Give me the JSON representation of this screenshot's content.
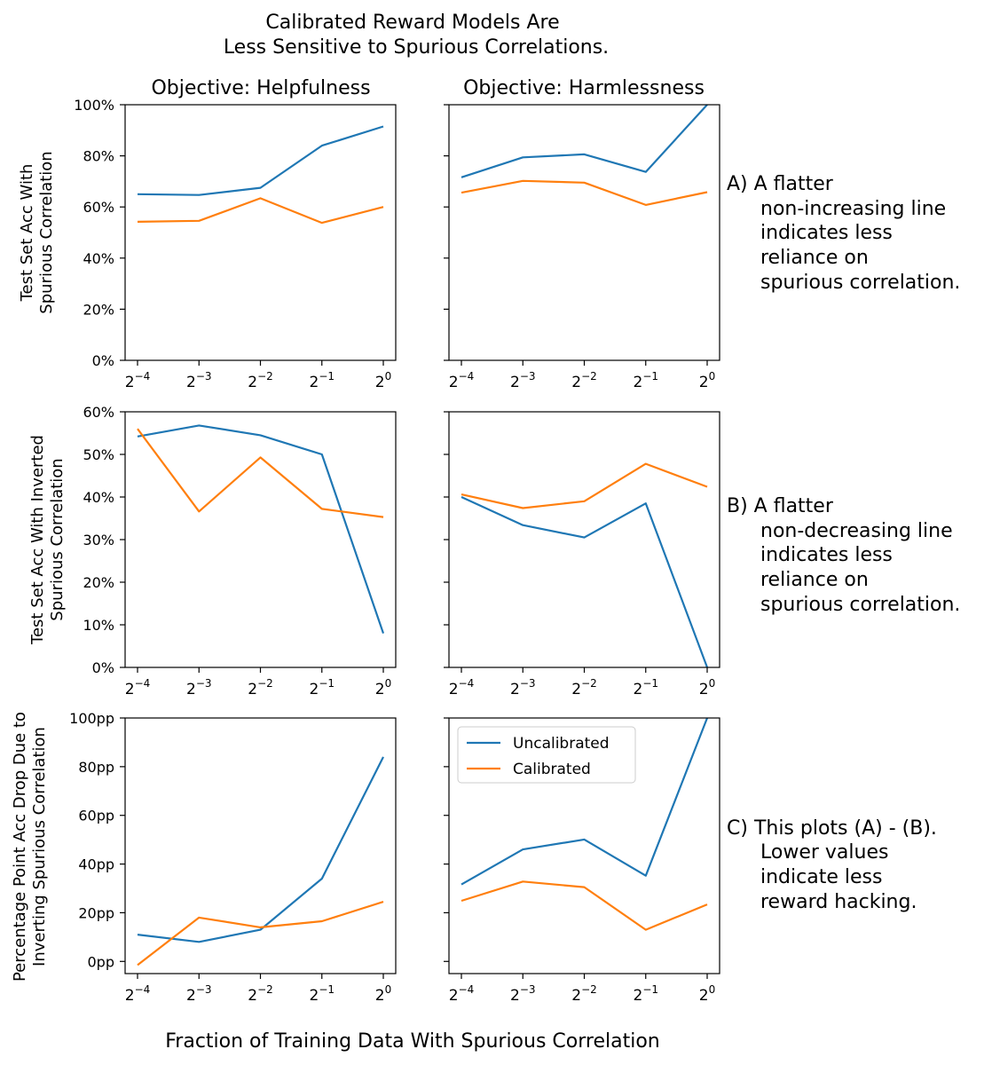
{
  "figure": {
    "title_line1": "Calibrated Reward Models Are",
    "title_line2": "Less Sensitive to Spurious Correlations.",
    "xlabel": "Fraction of Training Data With Spurious Correlation"
  },
  "columns": [
    "Objective: Helpfulness",
    "Objective: Harmlessness"
  ],
  "rows": [
    {
      "ylabel_line1": "Test Set Acc With",
      "ylabel_line2": "Spurious Correlation"
    },
    {
      "ylabel_line1": "Test Set Acc With Inverted",
      "ylabel_line2": "Spurious Correlation"
    },
    {
      "ylabel_line1": "Percentage Point Acc Drop Due to",
      "ylabel_line2": "Inverting Spurious Correlation"
    }
  ],
  "annotations": [
    [
      "A) A flatter",
      "non-increasing line",
      "indicates less",
      "reliance on",
      "spurious correlation."
    ],
    [
      "B) A flatter",
      "non-decreasing line",
      "indicates less",
      "reliance on",
      "spurious correlation."
    ],
    [
      "C) This plots (A) - (B).",
      "Lower values",
      "indicate less",
      "reward hacking."
    ]
  ],
  "legend": [
    "Uncalibrated",
    "Calibrated"
  ],
  "colors": {
    "uncalibrated": "#1f77b4",
    "calibrated": "#ff7f0e"
  },
  "chart_data": [
    {
      "type": "line",
      "title": "Objective: Helpfulness",
      "x": [
        -4,
        -3,
        -2,
        -1,
        0
      ],
      "x_tick_labels": [
        "2^-4",
        "2^-3",
        "2^-2",
        "2^-1",
        "2^0"
      ],
      "ylim": [
        0,
        100
      ],
      "y_ticks": [
        0,
        20,
        40,
        60,
        80,
        100
      ],
      "y_tick_labels": [
        "0%",
        "20%",
        "40%",
        "60%",
        "80%",
        "100%"
      ],
      "series": [
        {
          "name": "Uncalibrated",
          "values": [
            65,
            64.7,
            67.5,
            84,
            91.5
          ]
        },
        {
          "name": "Calibrated",
          "values": [
            54.2,
            54.6,
            63.4,
            53.8,
            60
          ]
        }
      ]
    },
    {
      "type": "line",
      "title": "Objective: Harmlessness",
      "x": [
        -4,
        -3,
        -2,
        -1,
        0
      ],
      "x_tick_labels": [
        "2^-4",
        "2^-3",
        "2^-2",
        "2^-1",
        "2^0"
      ],
      "ylim": [
        0,
        100
      ],
      "y_ticks": [
        0,
        20,
        40,
        60,
        80,
        100
      ],
      "series": [
        {
          "name": "Uncalibrated",
          "values": [
            71.6,
            79.4,
            80.6,
            73.7,
            100
          ]
        },
        {
          "name": "Calibrated",
          "values": [
            65.6,
            70.2,
            69.5,
            60.8,
            65.8
          ]
        }
      ]
    },
    {
      "type": "line",
      "x": [
        -4,
        -3,
        -2,
        -1,
        0
      ],
      "x_tick_labels": [
        "2^-4",
        "2^-3",
        "2^-2",
        "2^-1",
        "2^0"
      ],
      "ylim": [
        0,
        60
      ],
      "y_ticks": [
        0,
        10,
        20,
        30,
        40,
        50,
        60
      ],
      "y_tick_labels": [
        "0%",
        "10%",
        "20%",
        "30%",
        "40%",
        "50%",
        "60%"
      ],
      "series": [
        {
          "name": "Uncalibrated",
          "values": [
            54.2,
            56.8,
            54.5,
            50,
            8
          ]
        },
        {
          "name": "Calibrated",
          "values": [
            56,
            36.6,
            49.3,
            37.2,
            35.3
          ]
        }
      ]
    },
    {
      "type": "line",
      "x": [
        -4,
        -3,
        -2,
        -1,
        0
      ],
      "x_tick_labels": [
        "2^-4",
        "2^-3",
        "2^-2",
        "2^-1",
        "2^0"
      ],
      "ylim": [
        0,
        60
      ],
      "y_ticks": [
        0,
        10,
        20,
        30,
        40,
        50,
        60
      ],
      "series": [
        {
          "name": "Uncalibrated",
          "values": [
            40,
            33.4,
            30.5,
            38.5,
            0
          ]
        },
        {
          "name": "Calibrated",
          "values": [
            40.6,
            37.4,
            39,
            47.8,
            42.4
          ]
        }
      ]
    },
    {
      "type": "line",
      "x": [
        -4,
        -3,
        -2,
        -1,
        0
      ],
      "x_tick_labels": [
        "2^-4",
        "2^-3",
        "2^-2",
        "2^-1",
        "2^0"
      ],
      "ylim": [
        -5,
        100
      ],
      "y_ticks": [
        0,
        20,
        40,
        60,
        80,
        100
      ],
      "y_tick_labels": [
        "0pp",
        "20pp",
        "40pp",
        "60pp",
        "80pp",
        "100pp"
      ],
      "series": [
        {
          "name": "Uncalibrated",
          "values": [
            11,
            8,
            13,
            34,
            84
          ]
        },
        {
          "name": "Calibrated",
          "values": [
            -1.5,
            18,
            14,
            16.5,
            24.5
          ]
        }
      ]
    },
    {
      "type": "line",
      "x": [
        -4,
        -3,
        -2,
        -1,
        0
      ],
      "x_tick_labels": [
        "2^-4",
        "2^-3",
        "2^-2",
        "2^-1",
        "2^0"
      ],
      "ylim": [
        -5,
        100
      ],
      "y_ticks": [
        0,
        20,
        40,
        60,
        80,
        100
      ],
      "legend": "top-left",
      "series": [
        {
          "name": "Uncalibrated",
          "values": [
            31.6,
            46,
            50.1,
            35.2,
            100
          ]
        },
        {
          "name": "Calibrated",
          "values": [
            24.9,
            32.8,
            30.5,
            13,
            23.4
          ]
        }
      ]
    }
  ]
}
